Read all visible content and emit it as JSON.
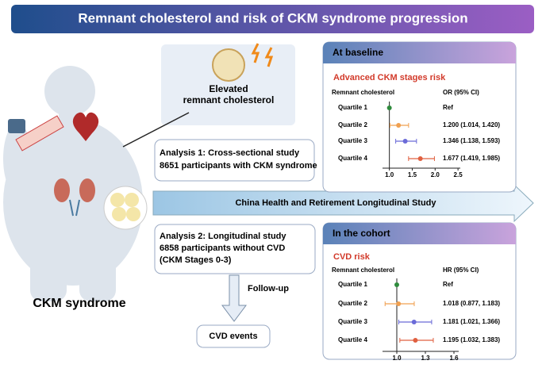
{
  "title": "Remnant cholesterol and risk of CKM syndrome progression",
  "figure_label": "CKM syndrome",
  "elevated": {
    "lines": [
      "Elevated",
      "remnant cholesterol"
    ]
  },
  "analysis1": {
    "lines": [
      "Analysis 1: Cross-sectional study",
      "8651 participants with CKM syndrome"
    ]
  },
  "study": "China Health and Retirement Longitudinal Study",
  "analysis2": {
    "lines": [
      "Analysis 2: Longitudinal study",
      "6858 participants without CVD",
      "(CKM Stages 0-3)"
    ]
  },
  "follow_up": "Follow-up",
  "outcome": "CVD events",
  "panels": [
    {
      "header": "At baseline",
      "subtitle": "Advanced CKM stages risk",
      "column_label": "Remnant cholesterol",
      "estimate_label": "OR (95% CI)",
      "categories": [
        "Quartile 1",
        "Quartile 2",
        "Quartile 3",
        "Quartile 4"
      ],
      "values": [
        1,
        1.2,
        1.346,
        1.677
      ],
      "lower": [
        null,
        1.014,
        1.138,
        1.419
      ],
      "upper": [
        null,
        1.42,
        1.593,
        1.985
      ],
      "value_labels": [
        "Ref",
        "1.200 (1.014, 1.420)",
        "1.346 (1.138, 1.593)",
        "1.677 (1.419, 1.985)"
      ],
      "colors": [
        "#2e8b3c",
        "#f0a050",
        "#6b6bd8",
        "#e06040"
      ],
      "xlim": [
        0.85,
        2.55
      ],
      "xticks": [
        {
          "value": 1,
          "label": "1.0"
        },
        1.5,
        {
          "value": 2,
          "label": "2.0"
        },
        2.5
      ]
    },
    {
      "header": "In the cohort",
      "subtitle": "CVD risk",
      "column_label": "Remnant cholesterol",
      "estimate_label": "HR (95% CI)",
      "categories": [
        "Quartile 1",
        "Quartile 2",
        "Quartile 3",
        "Quartile 4"
      ],
      "values": [
        1,
        1.018,
        1.181,
        1.195
      ],
      "lower": [
        null,
        0.877,
        1.021,
        1.032
      ],
      "upper": [
        null,
        1.183,
        1.366,
        1.383
      ],
      "value_labels": [
        "Ref",
        "1.018 (0.877, 1.183)",
        "1.181 (1.021, 1.366)",
        "1.195 (1.032, 1.383)"
      ],
      "colors": [
        "#2e8b3c",
        "#f0a050",
        "#6b6bd8",
        "#e06040"
      ],
      "xlim": [
        0.85,
        1.65
      ],
      "xticks": [
        {
          "value": 1,
          "label": "1.0"
        },
        1.3,
        1.6
      ]
    }
  ]
}
